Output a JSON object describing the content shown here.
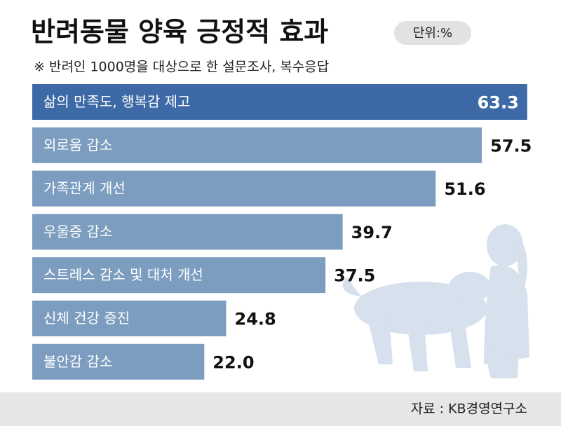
{
  "chart_data": {
    "type": "bar",
    "orientation": "horizontal",
    "title": "반려동물 양육 긍정적 효과",
    "unit": "단위:%",
    "subtitle": "※ 반려인 1000명을 대상으로 한 설문조사, 복수응답",
    "categories": [
      "삶의 만족도, 행복감 제고",
      "외로움 감소",
      "가족관계 개선",
      "우울증 감소",
      "스트레스 감소 및 대처 개선",
      "신체 건강 증진",
      "불안감 감소"
    ],
    "values": [
      63.3,
      57.5,
      51.6,
      39.7,
      37.5,
      24.8,
      22.0
    ],
    "value_labels": [
      "63.3",
      "57.5",
      "51.6",
      "39.7",
      "37.5",
      "24.8",
      "22.0"
    ],
    "colors": [
      "#3d6aa6",
      "#7c9dbf",
      "#7c9dbf",
      "#7c9dbf",
      "#7c9dbf",
      "#7c9dbf",
      "#7c9dbf"
    ],
    "source": "자료 : KB경영연구소"
  }
}
